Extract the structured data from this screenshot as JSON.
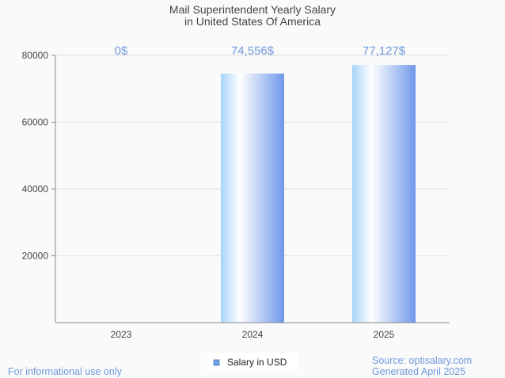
{
  "chart_data": {
    "type": "bar",
    "title": [
      "Mail Superintendent Yearly Salary",
      "in United States Of America"
    ],
    "categories": [
      "2023",
      "2024",
      "2025"
    ],
    "series": [
      {
        "name": "Salary in USD",
        "values": [
          0,
          74556,
          77127
        ],
        "labels": [
          "0$",
          "74,556$",
          "77,127$"
        ]
      }
    ],
    "xlabel": "",
    "ylabel": "",
    "ylim": [
      0,
      80000
    ],
    "yticks": [
      20000,
      40000,
      60000,
      80000
    ],
    "ytick_labels": [
      "20000",
      "40000",
      "60000",
      "80000"
    ],
    "grid": true,
    "legend_position": "bottom-center"
  },
  "footer": {
    "left": "For informational use only",
    "source": "Source: optisalary.com",
    "generated": "Generated April 2025"
  },
  "colors": {
    "bar_left": "#a8d4fb",
    "bar_mid": "#ffffff",
    "bar_right": "#6f98ea",
    "label": "#6f98dd",
    "legend_swatch": "#6fa0e0"
  }
}
